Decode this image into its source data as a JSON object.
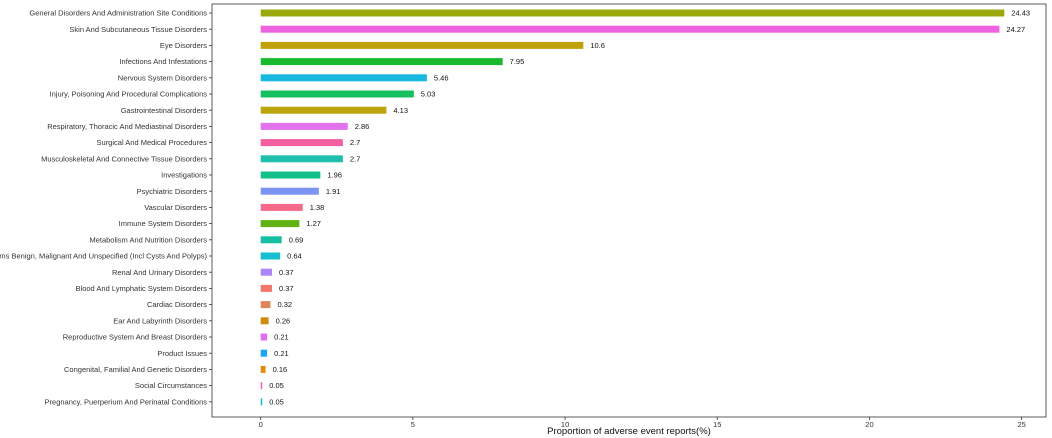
{
  "chart_data": {
    "type": "bar",
    "orientation": "horizontal",
    "xlabel": "Proportion of adverse event reports(%)",
    "ylabel": "",
    "xlim": [
      -1.6,
      25.8
    ],
    "xticks": [
      0,
      5,
      10,
      15,
      20,
      25
    ],
    "grid": false,
    "legend": "none",
    "categories": [
      "General Disorders And Administration Site Conditions",
      "Skin And Subcutaneous Tissue Disorders",
      "Eye Disorders",
      "Infections And Infestations",
      "Nervous System Disorders",
      "Injury, Poisoning And Procedural Complications",
      "Gastrointestinal Disorders",
      "Respiratory, Thoracic And Mediastinal Disorders",
      "Surgical And Medical Procedures",
      "Musculoskeletal And Connective Tissue Disorders",
      "Investigations",
      "Psychiatric Disorders",
      "Vascular Disorders",
      "Immune System Disorders",
      "Metabolism And Nutrition Disorders",
      "Neoplasms Benign, Malignant And Unspecified (Incl Cysts And Polyps)",
      "Renal And Urinary Disorders",
      "Blood And Lymphatic System Disorders",
      "Cardiac Disorders",
      "Ear And Labyrinth Disorders",
      "Reproductive System And Breast Disorders",
      "Product Issues",
      "Congenital, Familial And Genetic Disorders",
      "Social Circumstances",
      "Pregnancy, Puerperium And Perinatal Conditions"
    ],
    "values": [
      24.43,
      24.27,
      10.6,
      7.95,
      5.46,
      5.03,
      4.13,
      2.86,
      2.7,
      2.7,
      1.96,
      1.91,
      1.38,
      1.27,
      0.69,
      0.64,
      0.37,
      0.37,
      0.32,
      0.26,
      0.21,
      0.21,
      0.16,
      0.05,
      0.05
    ],
    "value_labels": [
      "24.43",
      "24.27",
      "10.6",
      "7.95",
      "5.46",
      "5.03",
      "4.13",
      "2.86",
      "2.7",
      "2.7",
      "1.96",
      "1.91",
      "1.38",
      "1.27",
      "0.69",
      "0.64",
      "0.37",
      "0.37",
      "0.32",
      "0.26",
      "0.21",
      "0.21",
      "0.16",
      "0.05",
      "0.05"
    ],
    "colors": [
      "#9ba80a",
      "#f063e0",
      "#bfa20a",
      "#1aba2e",
      "#18b8e0",
      "#13bf5f",
      "#bda60d",
      "#e273ec",
      "#f45fa0",
      "#1ebfad",
      "#12c08a",
      "#7b93f3",
      "#f6698a",
      "#5fb20f",
      "#16bfa3",
      "#15bfcf",
      "#aa86f7",
      "#f2766c",
      "#e0855a",
      "#d08c0c",
      "#e06ef0",
      "#1ba4f2",
      "#e48a10",
      "#f45fc0",
      "#17b8e0"
    ]
  }
}
